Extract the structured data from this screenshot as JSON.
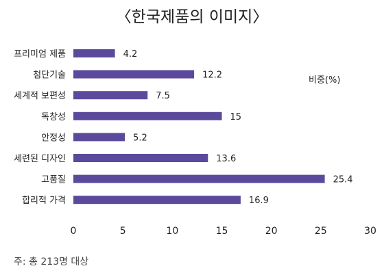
{
  "chart_data": {
    "type": "bar",
    "orientation": "horizontal",
    "title": "〈한국제품의 이미지〉",
    "categories": [
      "프리미엄 제품",
      "첨단기술",
      "세계적 보편성",
      "독창성",
      "안정성",
      "세련된 디자인",
      "고품질",
      "합리적 가격"
    ],
    "values": [
      4.2,
      12.2,
      7.5,
      15,
      5.2,
      13.6,
      25.4,
      16.9
    ],
    "value_labels": [
      "4.2",
      "12.2",
      "7.5",
      "15",
      "5.2",
      "13.6",
      "25.4",
      "16.9"
    ],
    "xlim": [
      0,
      30
    ],
    "x_ticks": [
      0,
      5,
      10,
      15,
      20,
      25,
      30
    ],
    "unit_label": "비중(%)",
    "grid": false,
    "legend": "none",
    "bar_color": "#5b4a9c"
  },
  "note": "주: 총 213명 대상"
}
